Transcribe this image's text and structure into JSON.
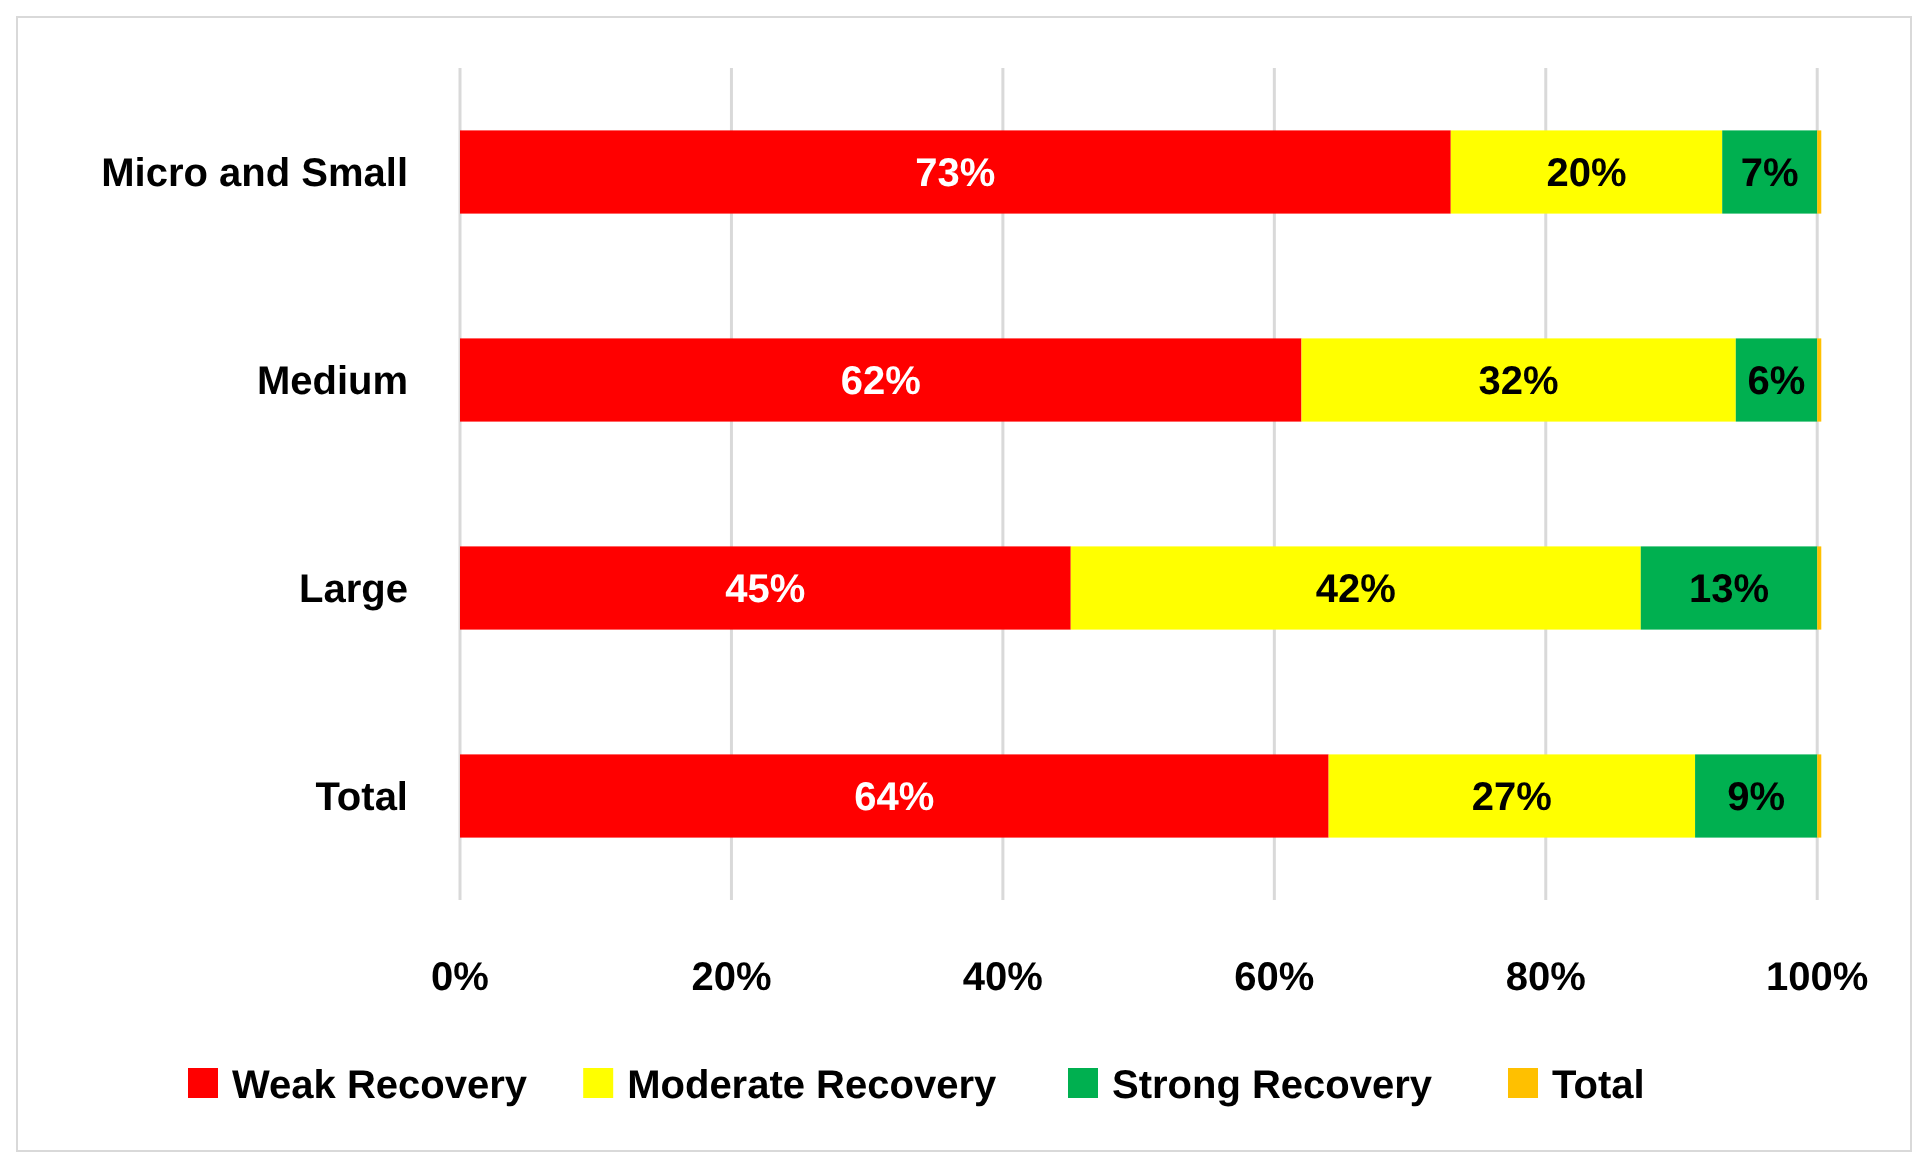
{
  "chart_data": {
    "type": "bar",
    "orientation": "horizontal",
    "stacked": true,
    "categories": [
      "Micro and Small",
      "Medium",
      "Large",
      "Total"
    ],
    "series": [
      {
        "name": "Weak Recovery",
        "color": "#ff0000",
        "values": [
          73,
          62,
          45,
          64
        ],
        "value_labels": [
          "73%",
          "62%",
          "45%",
          "64%"
        ]
      },
      {
        "name": "Moderate Recovery",
        "color": "#ffff00",
        "values": [
          20,
          32,
          42,
          27
        ],
        "value_labels": [
          "20%",
          "32%",
          "42%",
          "27%"
        ]
      },
      {
        "name": "Strong Recovery",
        "color": "#00b050",
        "values": [
          7,
          6,
          13,
          9
        ],
        "value_labels": [
          "7%",
          "6%",
          "13%",
          "9%"
        ]
      },
      {
        "name": "Total",
        "color": "#ffc000",
        "values": [
          0.3,
          0.3,
          0.3,
          0.3
        ]
      }
    ],
    "xlim": [
      0,
      100.5
    ],
    "xticks": [
      {
        "value": 0,
        "label": "0%"
      },
      {
        "value": 20,
        "label": "20%"
      },
      {
        "value": 40,
        "label": "40%"
      },
      {
        "value": 60,
        "label": "60%"
      },
      {
        "value": 80,
        "label": "80%"
      },
      {
        "value": 100,
        "label": "100%"
      }
    ],
    "grid": "x",
    "legend": "bottom"
  }
}
